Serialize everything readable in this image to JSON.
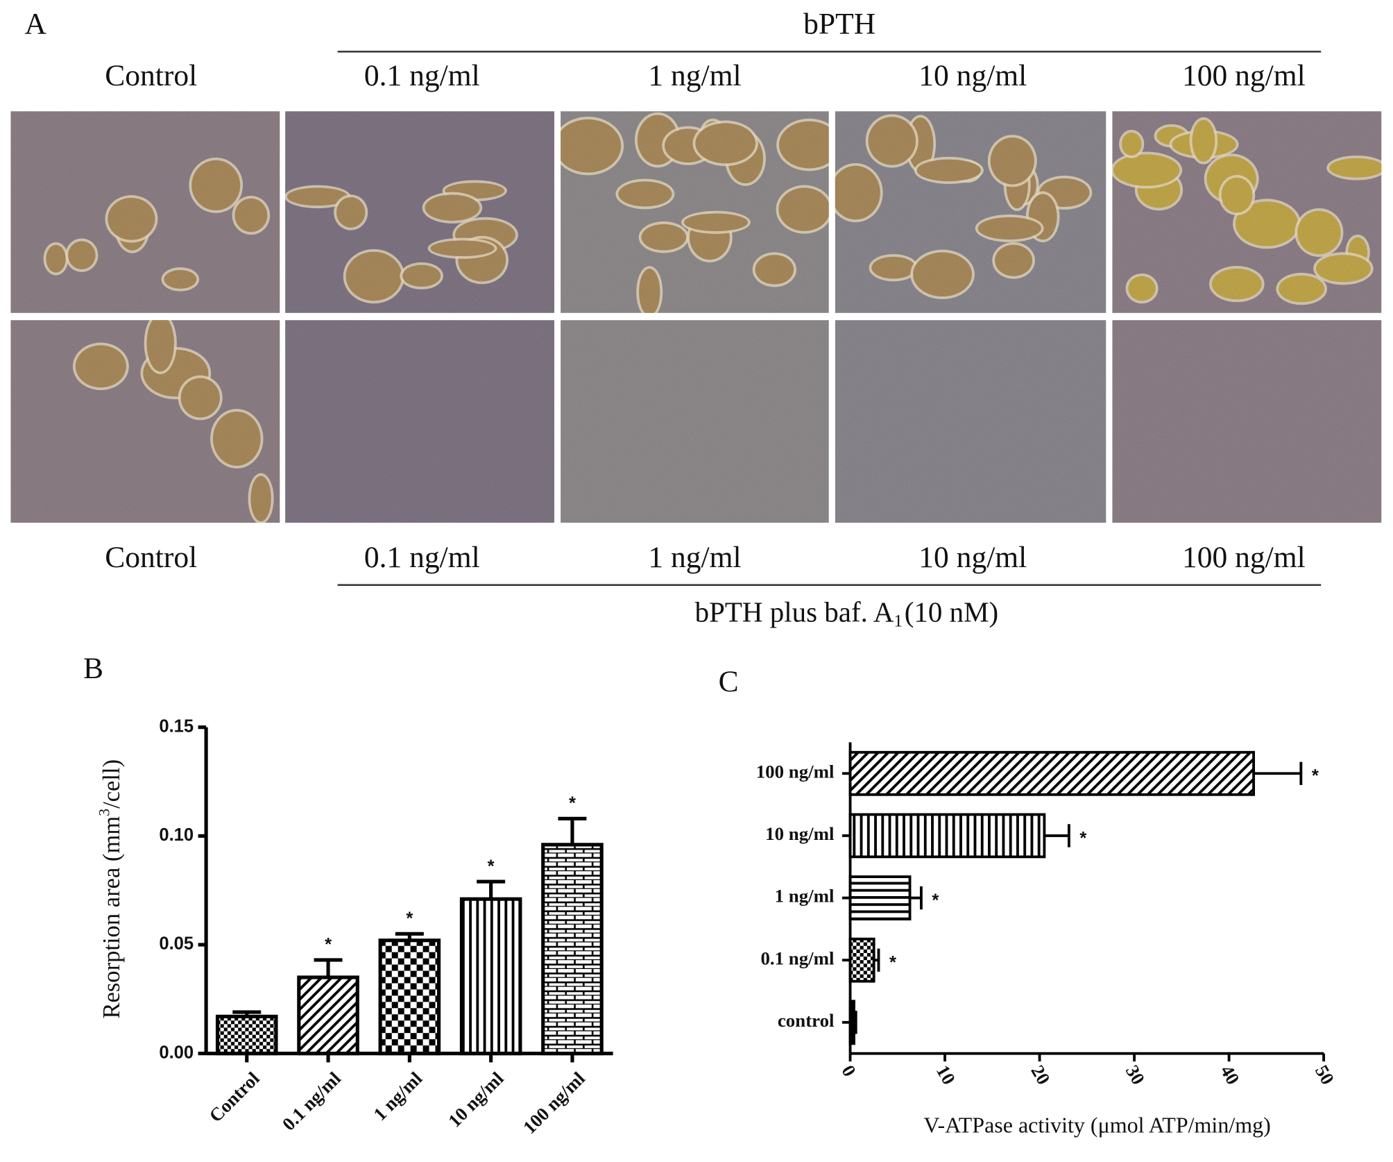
{
  "panel_a": {
    "label": "A",
    "top_group": "bPTH",
    "top_columns": [
      "Control",
      "0.1 ng/ml",
      "1 ng/ml",
      "10 ng/ml",
      "100 ng/ml"
    ],
    "bottom_columns": [
      "Control",
      "0.1 ng/ml",
      "1 ng/ml",
      "10 ng/ml",
      "100 ng/ml"
    ],
    "bottom_group": {
      "text": "bPTH plus baf. A",
      "subscript": "1",
      "suffix": "(10 nM)"
    }
  },
  "chart_data": [
    {
      "type": "bar",
      "panel": "B",
      "y_label": {
        "text": "Resorption area (mm",
        "superscript": "3",
        "suffix": "/cell)"
      },
      "categories": [
        "Control",
        "0.1 ng/ml",
        "1 ng/ml",
        "10 ng/ml",
        "100 ng/ml"
      ],
      "values": [
        0.017,
        0.035,
        0.052,
        0.071,
        0.096
      ],
      "errors": [
        0.002,
        0.008,
        0.003,
        0.008,
        0.012
      ],
      "significance": [
        null,
        "*",
        "*",
        "*",
        "*"
      ],
      "patterns": [
        "checker-small",
        "diagonal",
        "checker",
        "vertical",
        "bricks"
      ],
      "ylim": [
        0,
        0.15
      ],
      "yticks": [
        {
          "value": 0,
          "label": "0.00"
        },
        {
          "value": 0.05,
          "label": "0.05"
        },
        {
          "value": 0.1,
          "label": "0.10"
        },
        {
          "value": 0.15,
          "label": "0.15"
        }
      ]
    },
    {
      "type": "barh",
      "panel": "C",
      "x_label": "V-ATPase activity (μmol ATP/min/mg)",
      "categories": [
        "control",
        "0.1 ng/ml",
        "1 ng/ml",
        "10 ng/ml",
        "100 ng/ml"
      ],
      "values": [
        0.4,
        2.5,
        6.3,
        20.5,
        42.6
      ],
      "errors": [
        0.2,
        0.5,
        1.2,
        2.6,
        5.0
      ],
      "significance": [
        null,
        "*",
        "*",
        "*",
        "*"
      ],
      "patterns": [
        "plain",
        "checker-small",
        "horizontal",
        "vertical",
        "diagonal"
      ],
      "xlim": [
        0,
        50
      ],
      "xticks": [
        0,
        10,
        20,
        30,
        40,
        50
      ]
    }
  ]
}
